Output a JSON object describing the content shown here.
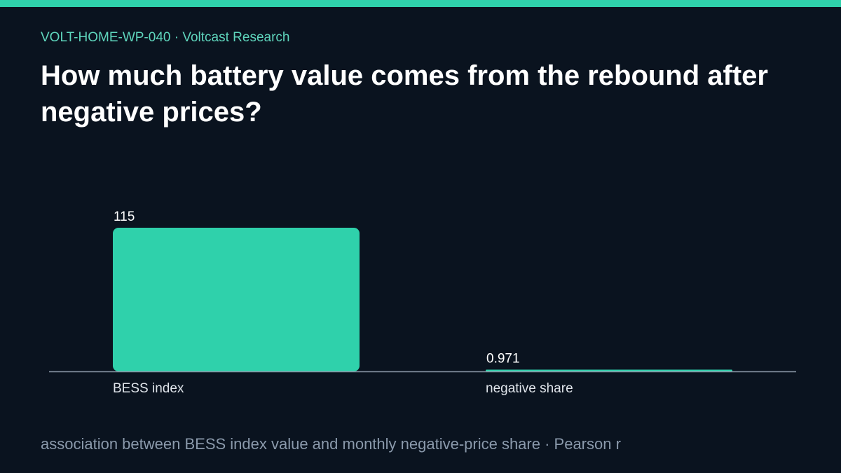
{
  "header": {
    "kicker": "VOLT-HOME-WP-040 · Voltcast Research",
    "title": "How much battery value comes from the rebound after negative prices?"
  },
  "caption": "association between BESS index value and monthly negative-price share · Pearson r",
  "colors": {
    "background": "#0a131f",
    "accent": "#2fd1ab",
    "kicker": "#5fd6bd",
    "title": "#ffffff",
    "value_label": "#ffffff",
    "category_label": "#dfe4ea",
    "caption": "#8a99ab",
    "axis": "#8a96a6"
  },
  "chart_data": {
    "type": "bar",
    "categories": [
      "BESS index",
      "negative share"
    ],
    "values": [
      115,
      0.971
    ],
    "value_labels": [
      "115",
      "0.971"
    ],
    "title": "",
    "xlabel": "",
    "ylabel": "",
    "ylim": [
      0,
      115
    ],
    "grid": false,
    "legend": "none"
  }
}
